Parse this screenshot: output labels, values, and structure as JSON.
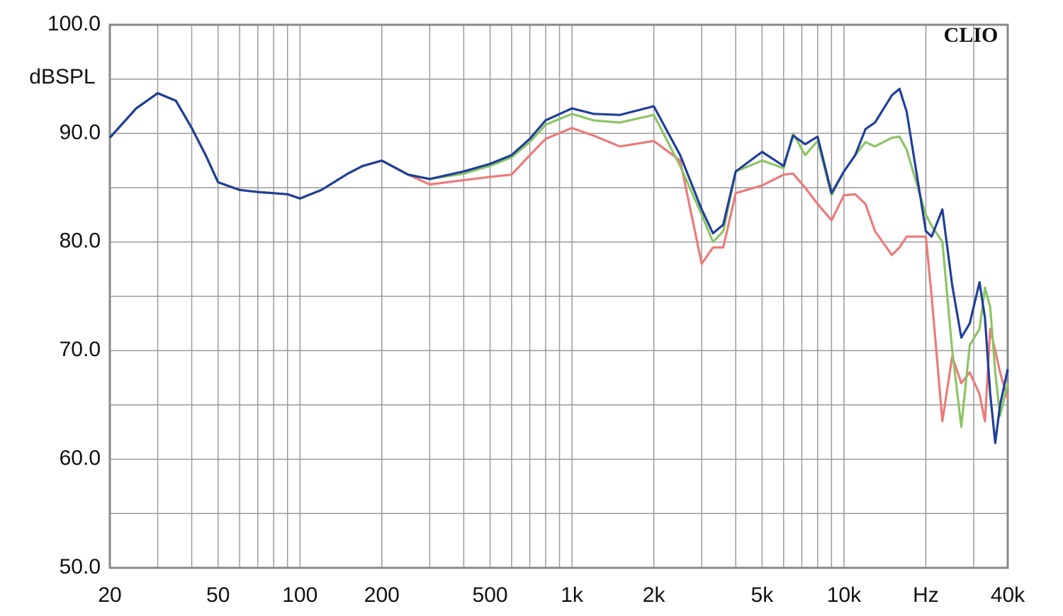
{
  "chart_data": {
    "type": "line",
    "y_label": "dBSPL",
    "annotation": "CLIO",
    "x_scale": "log",
    "grid": true,
    "xlim": [
      20,
      40000
    ],
    "ylim": [
      50,
      100
    ],
    "xticks": [
      20,
      {
        "value": 30,
        "label": null
      },
      {
        "value": 40,
        "label": null
      },
      50,
      {
        "value": 60,
        "label": null
      },
      {
        "value": 70,
        "label": null
      },
      {
        "value": 80,
        "label": null
      },
      {
        "value": 90,
        "label": null
      },
      100,
      200,
      {
        "value": 300,
        "label": null
      },
      {
        "value": 400,
        "label": null
      },
      500,
      {
        "value": 600,
        "label": null
      },
      {
        "value": 700,
        "label": null
      },
      {
        "value": 800,
        "label": null
      },
      {
        "value": 900,
        "label": null
      },
      {
        "value": 1000,
        "label": "1k"
      },
      {
        "value": 2000,
        "label": "2k"
      },
      {
        "value": 3000,
        "label": null
      },
      {
        "value": 4000,
        "label": null
      },
      {
        "value": 5000,
        "label": "5k"
      },
      {
        "value": 6000,
        "label": null
      },
      {
        "value": 7000,
        "label": null
      },
      {
        "value": 8000,
        "label": null
      },
      {
        "value": 9000,
        "label": null
      },
      {
        "value": 10000,
        "label": "10k"
      },
      {
        "value": 20000,
        "label": "Hz"
      },
      {
        "value": 30000,
        "label": null
      },
      {
        "value": 40000,
        "label": "40k"
      }
    ],
    "yticks": [
      {
        "value": 50,
        "label": "50.0"
      },
      {
        "value": 55,
        "label": null
      },
      {
        "value": 60,
        "label": "60.0"
      },
      {
        "value": 65,
        "label": null
      },
      {
        "value": 70,
        "label": "70.0"
      },
      {
        "value": 75,
        "label": null
      },
      {
        "value": 80,
        "label": "80.0"
      },
      {
        "value": 85,
        "label": null
      },
      {
        "value": 90,
        "label": "90.0"
      },
      {
        "value": 95,
        "label": null
      },
      {
        "value": 100,
        "label": "100.0"
      }
    ],
    "x": [
      20,
      25,
      30,
      35,
      40,
      45,
      50,
      60,
      70,
      80,
      90,
      100,
      120,
      150,
      170,
      200,
      250,
      300,
      400,
      500,
      600,
      700,
      800,
      1000,
      1200,
      1500,
      2000,
      2500,
      3000,
      3300,
      3600,
      4000,
      5000,
      6000,
      6500,
      7200,
      8000,
      9000,
      10000,
      11000,
      12000,
      13000,
      15000,
      16000,
      17000,
      20000,
      21000,
      23000,
      25000,
      27000,
      29000,
      31500,
      33000,
      34500,
      36000,
      37500,
      40000
    ],
    "series": [
      {
        "color": "#ec7a7a",
        "values": [
          89.6,
          92.3,
          93.7,
          93.0,
          90.5,
          88.0,
          85.5,
          84.8,
          84.6,
          84.5,
          84.4,
          84.0,
          84.8,
          86.3,
          87.0,
          87.5,
          86.2,
          85.3,
          85.7,
          86.0,
          86.2,
          88.0,
          89.5,
          90.5,
          89.8,
          88.8,
          89.3,
          87.5,
          78.0,
          79.5,
          79.5,
          84.5,
          85.2,
          86.2,
          86.3,
          85.0,
          83.5,
          82.0,
          84.3,
          84.4,
          83.5,
          81.0,
          78.8,
          79.5,
          80.5,
          80.5,
          75.0,
          63.5,
          69.5,
          67.0,
          68.0,
          66.0,
          63.5,
          72.0,
          70.0,
          68.0,
          65.5
        ]
      },
      {
        "color": "#8cc465",
        "values": [
          89.6,
          92.3,
          93.7,
          93.0,
          90.5,
          88.0,
          85.5,
          84.8,
          84.6,
          84.5,
          84.4,
          84.0,
          84.8,
          86.3,
          87.0,
          87.5,
          86.2,
          85.8,
          86.3,
          87.0,
          87.8,
          89.2,
          90.8,
          91.8,
          91.2,
          91.0,
          91.7,
          87.0,
          82.5,
          80.0,
          81.0,
          86.5,
          87.5,
          86.8,
          90.0,
          88.0,
          89.3,
          84.3,
          86.5,
          88.0,
          89.2,
          88.8,
          89.6,
          89.7,
          88.5,
          82.5,
          81.5,
          80.0,
          70.0,
          63.0,
          70.5,
          72.0,
          75.8,
          74.0,
          68.0,
          64.0,
          67.0
        ]
      },
      {
        "color": "#1f3f99",
        "values": [
          89.6,
          92.3,
          93.7,
          93.0,
          90.5,
          88.0,
          85.5,
          84.8,
          84.6,
          84.5,
          84.4,
          84.0,
          84.8,
          86.3,
          87.0,
          87.5,
          86.2,
          85.8,
          86.5,
          87.2,
          88.0,
          89.5,
          91.2,
          92.3,
          91.8,
          91.7,
          92.5,
          88.0,
          83.0,
          80.8,
          81.6,
          86.5,
          88.3,
          87.0,
          89.8,
          89.0,
          89.7,
          84.5,
          86.5,
          88.0,
          90.4,
          91.0,
          93.5,
          94.1,
          92.0,
          81.0,
          80.5,
          83.0,
          76.0,
          71.2,
          72.5,
          76.3,
          73.0,
          66.0,
          61.5,
          65.0,
          68.3
        ]
      }
    ]
  }
}
